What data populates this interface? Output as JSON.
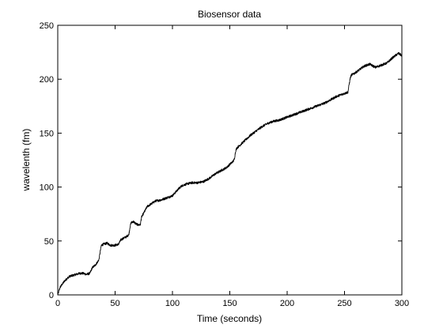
{
  "chart_data": {
    "type": "line",
    "title": "Biosensor data",
    "xlabel": "Time (seconds)",
    "ylabel": "wavelenth (fm)",
    "xlim": [
      0,
      300
    ],
    "ylim": [
      0,
      250
    ],
    "xticks": [
      0,
      50,
      100,
      150,
      200,
      250,
      300
    ],
    "yticks": [
      0,
      50,
      100,
      150,
      200,
      250
    ],
    "xtick_labels": [
      "0",
      "50",
      "100",
      "150",
      "200",
      "250",
      "300"
    ],
    "ytick_labels": [
      "0",
      "50",
      "100",
      "150",
      "200",
      "250"
    ],
    "grid": false,
    "line_color": "#000000",
    "series": [
      {
        "x": [
          0,
          2,
          4,
          6,
          8,
          10,
          13,
          16,
          19,
          22,
          25,
          28,
          30,
          33,
          35,
          36,
          37,
          38,
          40,
          43,
          46,
          50,
          53,
          55,
          58,
          60,
          62,
          63,
          64,
          66,
          68,
          70,
          72,
          73,
          74,
          76,
          78,
          81,
          85,
          90,
          95,
          100,
          105,
          108,
          110,
          113,
          117,
          122,
          127,
          132,
          137,
          142,
          147,
          151,
          153,
          154,
          155,
          156,
          158,
          160,
          163,
          168,
          173,
          178,
          183,
          188,
          193,
          198,
          203,
          208,
          213,
          218,
          223,
          228,
          233,
          238,
          243,
          248,
          253,
          254,
          255,
          256,
          258,
          262,
          267,
          272,
          277,
          282,
          287,
          292,
          297,
          300
        ],
        "y": [
          0,
          7,
          10,
          13,
          15,
          17,
          18,
          19,
          20,
          20,
          19,
          20,
          25,
          28,
          31,
          33,
          40,
          46,
          47,
          48,
          46,
          46,
          47,
          51,
          53,
          54,
          56,
          63,
          67,
          68,
          66,
          65,
          65,
          72,
          74,
          78,
          82,
          84,
          87,
          88,
          90,
          92,
          98,
          101,
          102,
          103,
          104,
          104,
          105,
          108,
          112,
          115,
          118,
          122,
          124,
          126,
          133,
          136,
          138,
          140,
          143,
          148,
          152,
          156,
          159,
          161,
          162,
          164,
          166,
          168,
          170,
          172,
          174,
          176,
          178,
          181,
          184,
          186,
          188,
          195,
          201,
          204,
          205,
          208,
          212,
          214,
          211,
          213,
          215,
          220,
          224,
          222
        ]
      }
    ]
  }
}
